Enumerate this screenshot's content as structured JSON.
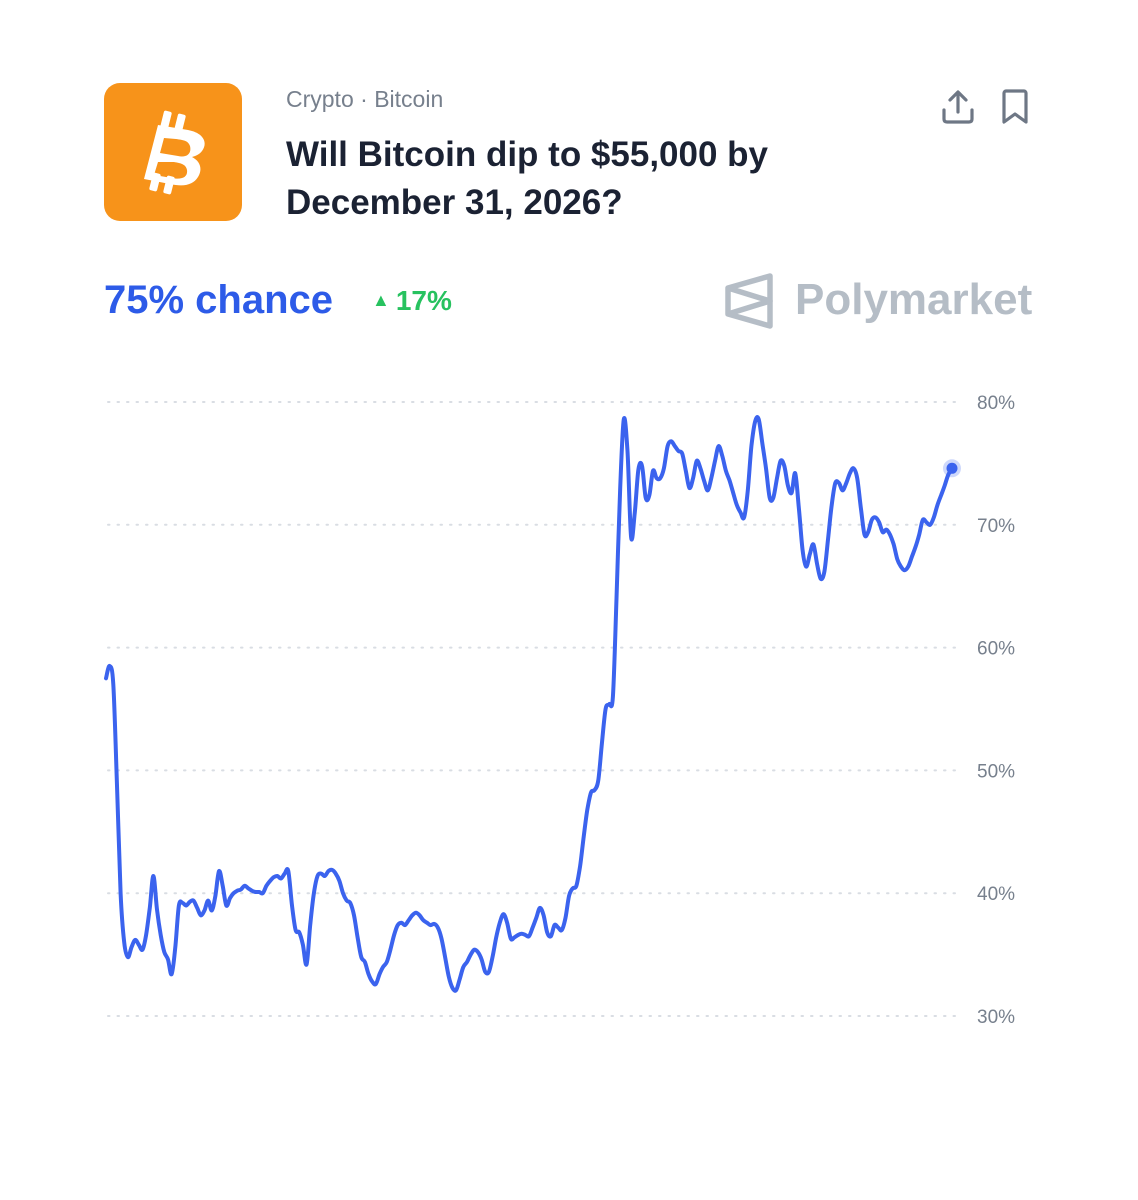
{
  "header": {
    "breadcrumb_category": "Crypto",
    "breadcrumb_separator": "·",
    "breadcrumb_subcategory": "Bitcoin",
    "title": "Will Bitcoin dip to $55,000 by December 31, 2026?",
    "logo_icon": "bitcoin-icon",
    "share_icon": "share-icon",
    "bookmark_icon": "bookmark-icon"
  },
  "stats": {
    "chance": "75% chance",
    "delta_icon": "triangle-up-icon",
    "delta": "17%"
  },
  "brand": {
    "name": "Polymarket",
    "logo_icon": "polymarket-logo-icon"
  },
  "colors": {
    "accent": "#2D5BE8",
    "line": "#3B63EE",
    "positive": "#27C25F",
    "bitcoin": "#F7931A",
    "title": "#1B2233",
    "muted": "#77808D",
    "brand_gray": "#B5BDC6",
    "grid": "#D9DDE3"
  },
  "chart_data": {
    "type": "line",
    "title": "",
    "xlabel": "",
    "ylabel": "",
    "ylim": [
      30,
      80
    ],
    "y_ticks": [
      80,
      70,
      60,
      50,
      40,
      30
    ],
    "y_tick_labels": [
      "80%",
      "70%",
      "60%",
      "50%",
      "40%",
      "30%"
    ],
    "grid": true,
    "series": [
      {
        "values": [
          57.5,
          58.5,
          57,
          49,
          40,
          36,
          34.8,
          35.6,
          36.2,
          35.8,
          35.4,
          36.6,
          38.8,
          41.4,
          38.6,
          36.6,
          35.2,
          34.6,
          33.4,
          35.6,
          39,
          39.2,
          39,
          39.3,
          39.4,
          38.8,
          38.2,
          38.6,
          39.4,
          38.6,
          39.8,
          41.8,
          40.6,
          39,
          39.6,
          40,
          40.2,
          40.3,
          40.6,
          40.4,
          40.2,
          40.1,
          40.1,
          40,
          40.6,
          41,
          41.3,
          41.4,
          41.2,
          41.6,
          41.8,
          39,
          37,
          36.8,
          35.8,
          34.2,
          37.4,
          40,
          41.4,
          41.6,
          41.4,
          41.8,
          41.9,
          41.6,
          41,
          40,
          39.4,
          39.2,
          38.2,
          36.4,
          34.8,
          34.4,
          33.4,
          32.8,
          32.6,
          33.4,
          34,
          34.4,
          35.4,
          36.6,
          37.4,
          37.6,
          37.4,
          37.8,
          38.2,
          38.4,
          38.2,
          37.8,
          37.6,
          37.4,
          37.5,
          37.2,
          36.3,
          34.8,
          33.2,
          32.3,
          32.1,
          33,
          34,
          34.4,
          35,
          35.4,
          35.2,
          34.6,
          33.6,
          33.6,
          34.8,
          36.4,
          37.6,
          38.3,
          37.6,
          36.3,
          36.4,
          36.6,
          36.7,
          36.6,
          36.5,
          37.2,
          38,
          38.8,
          38.2,
          36.8,
          36.5,
          37.4,
          37.2,
          37,
          38,
          39.8,
          40.4,
          40.6,
          42.2,
          44.6,
          46.8,
          48.2,
          48.4,
          49.2,
          52.2,
          55,
          55.4,
          56,
          64,
          73,
          78.6,
          76,
          69,
          71,
          74.5,
          74.8,
          72.2,
          72.4,
          74.4,
          73.8,
          73.8,
          74.6,
          76.4,
          76.8,
          76.4,
          76,
          75.8,
          74.4,
          73,
          73.8,
          75.2,
          74.6,
          73.6,
          72.8,
          73.8,
          75.2,
          76.4,
          75.6,
          74.4,
          73.6,
          72.6,
          71.6,
          71,
          70.6,
          72.8,
          76.4,
          78.4,
          78.6,
          76.6,
          74.6,
          72.2,
          72.2,
          73.8,
          75.2,
          74.8,
          73.2,
          72.6,
          74.2,
          71.4,
          68,
          66.6,
          67.6,
          68.4,
          66.8,
          65.6,
          66.2,
          68.8,
          71.6,
          73.4,
          73.4,
          72.8,
          73.4,
          74.2,
          74.6,
          73.8,
          71.4,
          69.2,
          69.4,
          70.4,
          70.6,
          70.2,
          69.4,
          69.6,
          69.2,
          68.4,
          67.2,
          66.6,
          66.3,
          66.6,
          67.4,
          68.2,
          69.2,
          70.4,
          70.2,
          70,
          70.6,
          71.6,
          72.4,
          73.2,
          74.1,
          74.6
        ],
        "end_marker": true
      }
    ]
  }
}
